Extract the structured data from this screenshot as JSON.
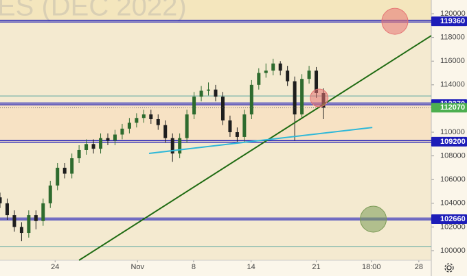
{
  "chart_data": {
    "type": "candlestick",
    "title": "ES (DEC 2022)",
    "x": [
      0,
      1.5,
      3,
      4.5,
      6,
      7.5,
      9,
      10.5,
      12,
      13.5,
      15,
      16.5,
      18,
      19.5,
      21,
      22.5,
      24,
      25.5,
      27,
      28.5,
      30,
      31.5,
      33,
      34.5,
      36,
      37.5,
      39,
      40.5,
      42,
      43.5,
      45,
      46.5,
      48,
      49.5,
      51,
      52.5,
      54,
      55.5,
      57,
      58.5,
      60,
      61.5,
      63,
      64.5,
      66,
      67.5
    ],
    "open": [
      104500,
      104000,
      103000,
      102000,
      101500,
      103000,
      102500,
      104000,
      105500,
      107000,
      106500,
      107800,
      108500,
      109000,
      108600,
      109500,
      109300,
      109800,
      110300,
      110800,
      111200,
      111500,
      111100,
      110600,
      109500,
      108200,
      109500,
      111500,
      113000,
      113500,
      113600,
      113000,
      111000,
      110000,
      109600,
      111500,
      114000,
      115000,
      115200,
      115800,
      115200,
      114300,
      111500,
      114500,
      115200,
      113300
    ],
    "high": [
      104900,
      104400,
      103400,
      102400,
      103400,
      103400,
      104400,
      105900,
      107400,
      107400,
      108200,
      108900,
      109400,
      109400,
      109900,
      109900,
      110200,
      110700,
      111200,
      111600,
      111900,
      111900,
      111500,
      111000,
      109900,
      109900,
      111900,
      113400,
      113900,
      114200,
      114000,
      113400,
      111400,
      110400,
      111900,
      114400,
      115400,
      115800,
      116200,
      116000,
      115600,
      114700,
      114900,
      115600,
      115500,
      113700
    ],
    "low": [
      103600,
      102600,
      101600,
      100800,
      101100,
      101800,
      102100,
      103600,
      105100,
      106100,
      106100,
      107400,
      108100,
      108200,
      108200,
      108900,
      108900,
      109400,
      109900,
      110400,
      110800,
      110700,
      110200,
      109100,
      107500,
      107800,
      109100,
      111100,
      112600,
      113100,
      112600,
      110600,
      109600,
      109200,
      109200,
      111100,
      113600,
      114600,
      114800,
      114800,
      113900,
      109300,
      111100,
      114100,
      112900,
      111100
    ],
    "close": [
      104000,
      103000,
      102000,
      101500,
      103000,
      102500,
      104000,
      105500,
      107000,
      106500,
      107800,
      108500,
      109000,
      108600,
      109500,
      109300,
      109800,
      110300,
      110800,
      111200,
      111500,
      111100,
      110600,
      109500,
      108200,
      109500,
      111500,
      113000,
      113500,
      113600,
      113000,
      111000,
      110000,
      109600,
      111500,
      114000,
      115000,
      115200,
      115800,
      115200,
      114300,
      111500,
      114500,
      115200,
      113300,
      112070
    ],
    "up_color": "#2e6b2e",
    "down_color": "#1e1e1e",
    "xlim": [
      0,
      90
    ],
    "xticks": [
      {
        "value": 11.5,
        "label": "24"
      },
      {
        "value": 28.7,
        "label": "Nov"
      },
      {
        "value": 40.4,
        "label": "8"
      },
      {
        "value": 52.4,
        "label": "14"
      },
      {
        "value": 66,
        "label": "21"
      },
      {
        "value": 77.5,
        "label": "18:00"
      },
      {
        "value": 87.4,
        "label": "28"
      }
    ],
    "ylim": [
      99190,
      121160
    ],
    "yticks": [
      100000,
      102000,
      104000,
      106000,
      108000,
      110000,
      112000,
      114000,
      116000,
      118000,
      120000
    ],
    "levels": [
      119360,
      112370,
      109200,
      102660
    ],
    "levels_color": "#1c1cb8",
    "last_price": 112070,
    "last_price_color": "#4caf50",
    "guides": [
      113060,
      100350
    ],
    "guides_color": "#5aa6a0",
    "trendlines": [
      {
        "x": [
          16.5,
          90
        ],
        "y": [
          99190,
          118150
        ],
        "color": "#1f6b12"
      },
      {
        "x": [
          31.1,
          77.7
        ],
        "y": [
          108210,
          110400
        ],
        "color": "#2fb8d8"
      }
    ],
    "circles": [
      {
        "x": 82.4,
        "y": 119360,
        "color": "#e57373"
      },
      {
        "x": 66.6,
        "y": 112890,
        "color": "#e57373"
      },
      {
        "x": 77.9,
        "y": 102660,
        "color": "#7a9a55"
      }
    ]
  }
}
